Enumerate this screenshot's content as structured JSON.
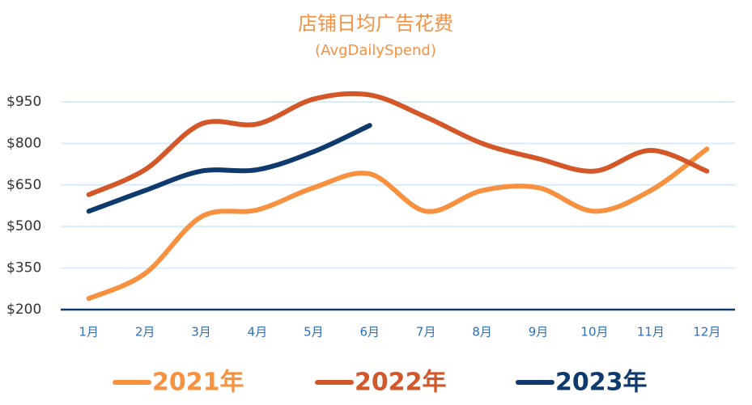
{
  "chart_data": {
    "type": "line",
    "title": "店铺日均广告花费",
    "subtitle": "(AvgDailySpend)",
    "categories": [
      "1月",
      "2月",
      "3月",
      "4月",
      "5月",
      "6月",
      "7月",
      "8月",
      "9月",
      "10月",
      "11月",
      "12月"
    ],
    "series": [
      {
        "name": "2021年",
        "color": "#f7913f",
        "values": [
          240,
          330,
          535,
          560,
          640,
          690,
          555,
          630,
          640,
          555,
          630,
          780
        ]
      },
      {
        "name": "2022年",
        "color": "#d4572a",
        "values": [
          615,
          705,
          870,
          870,
          960,
          975,
          895,
          800,
          745,
          700,
          775,
          700
        ]
      },
      {
        "name": "2023年",
        "color": "#0f3a6e",
        "values": [
          555,
          630,
          700,
          705,
          770,
          865,
          null,
          null,
          null,
          null,
          null,
          null
        ]
      }
    ],
    "ylim": [
      200,
      950
    ],
    "yticks": [
      {
        "value": 200,
        "label": "$200"
      },
      {
        "value": 350,
        "label": "$350"
      },
      {
        "value": 500,
        "label": "$500"
      },
      {
        "value": 650,
        "label": "$650"
      },
      {
        "value": 800,
        "label": "$800"
      },
      {
        "value": 950,
        "label": "$950"
      }
    ],
    "grid": true,
    "legend": "bottom"
  }
}
